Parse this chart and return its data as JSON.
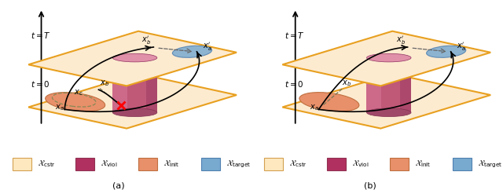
{
  "fig_width": 6.4,
  "fig_height": 2.42,
  "dpi": 100,
  "bg_color": "#ffffff",
  "plane_color": "#fdebd0",
  "plane_edge_color": "#e8a020",
  "legend_items": [
    {
      "label": "$\\mathcal{X}_{\\mathrm{cstr}}$",
      "color": "#fde8c0",
      "edgecolor": "#d4a050"
    },
    {
      "label": "$\\mathcal{X}_{\\mathrm{viol}}$",
      "color": "#b03060",
      "edgecolor": "#903050"
    },
    {
      "label": "$\\mathcal{X}_{\\mathrm{init}}$",
      "color": "#e8906a",
      "edgecolor": "#c07040"
    },
    {
      "label": "$\\mathcal{X}_{\\mathrm{target}}$",
      "color": "#78aad0",
      "edgecolor": "#5080b0"
    }
  ],
  "caption_a": "(a)",
  "caption_b": "(b)",
  "caption_fontsize": 8,
  "label_fontsize": 7,
  "time_label_fontsize": 7.5,
  "legend_fontsize": 7.5
}
